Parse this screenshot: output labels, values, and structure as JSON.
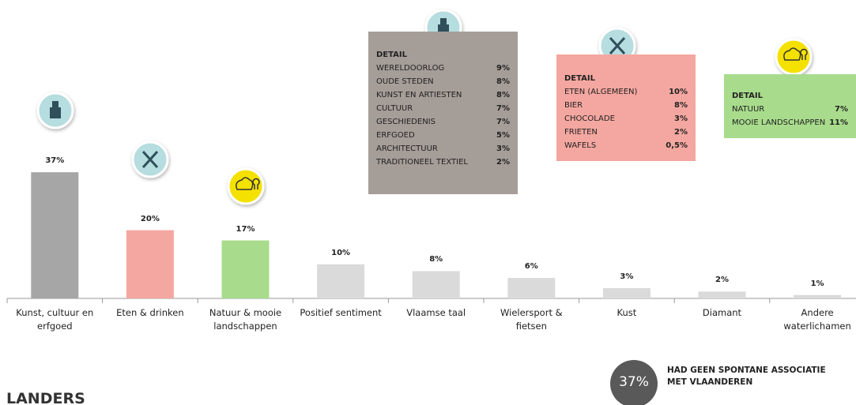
{
  "chart_data": {
    "type": "bar",
    "categories": [
      "Kunst, cultuur en erfgoed",
      "Eten & drinken",
      "Natuur & mooie landschappen",
      "Positief sentiment",
      "Vlaamse taal",
      "Wielersport & fietsen",
      "Kust",
      "Diamant",
      "Andere waterlichamen"
    ],
    "values": [
      37,
      20,
      17,
      10,
      8,
      6,
      3,
      2,
      1
    ],
    "value_labels": [
      "37%",
      "20%",
      "17%",
      "10%",
      "8%",
      "6%",
      "3%",
      "2%",
      "1%"
    ],
    "colors": [
      "#a6a6a6",
      "#f4a7a0",
      "#a8dc8c",
      "#dadada",
      "#dadada",
      "#dadada",
      "#dadada",
      "#dadada",
      "#dadada"
    ]
  },
  "details": [
    {
      "title": "DETAIL",
      "items": [
        [
          "WERELDOORLOG",
          "9%"
        ],
        [
          "OUDE STEDEN",
          "8%"
        ],
        [
          "KUNST EN ARTIESTEN",
          "8%"
        ],
        [
          "CULTUUR",
          "7%"
        ],
        [
          "GESCHIEDENIS",
          "7%"
        ],
        [
          "ERFGOED",
          "5%"
        ],
        [
          "ARCHITECTUUR",
          "3%"
        ],
        [
          "TRADITIONEEL TEXTIEL",
          "2%"
        ]
      ]
    },
    {
      "title": "DETAIL",
      "items": [
        [
          "ETEN (ALGEMEEN)",
          "10%"
        ],
        [
          "BIER",
          "8%"
        ],
        [
          "CHOCOLADE",
          "3%"
        ],
        [
          "FRIETEN",
          "2%"
        ],
        [
          "WAFELS",
          "0,5%"
        ]
      ]
    },
    {
      "title": "DETAIL",
      "items": [
        [
          "NATUUR",
          "7%"
        ],
        [
          "MOOIE LANDSCHAPPEN",
          "11%"
        ]
      ]
    }
  ],
  "footer": {
    "heading": "LANDERS",
    "stat": "37%",
    "stat_text": "HAD GEEN SPONTANE ASSOCIATIE MET VLAANDEREN"
  }
}
